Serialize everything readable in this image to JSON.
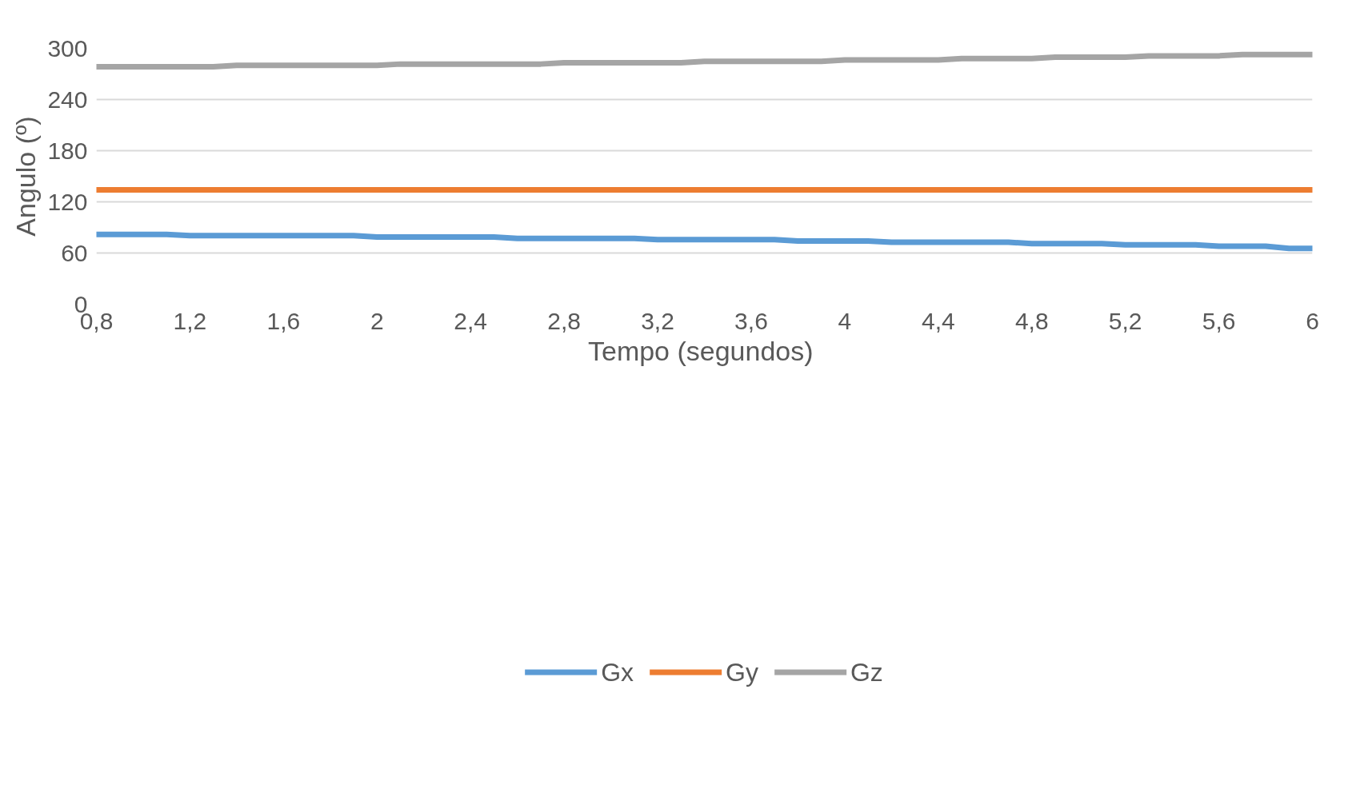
{
  "chart_data": {
    "type": "line",
    "xlabel": "Tempo  (segundos)",
    "ylabel": "Angulo (º)",
    "xlim": [
      0.8,
      6
    ],
    "ylim": [
      0,
      300
    ],
    "xticks": [
      {
        "value": 0.8,
        "label": "0,8"
      },
      {
        "value": 1.2,
        "label": "1,2"
      },
      {
        "value": 1.6,
        "label": "1,6"
      },
      2,
      {
        "value": 2.4,
        "label": "2,4"
      },
      {
        "value": 2.8,
        "label": "2,8"
      },
      {
        "value": 3.2,
        "label": "3,2"
      },
      {
        "value": 3.6,
        "label": "3,6"
      },
      4,
      {
        "value": 4.4,
        "label": "4,4"
      },
      {
        "value": 4.8,
        "label": "4,8"
      },
      {
        "value": 5.2,
        "label": "5,2"
      },
      {
        "value": 5.6,
        "label": "5,6"
      },
      6
    ],
    "yticks": [
      0,
      60,
      120,
      180,
      240,
      300
    ],
    "grid": "y",
    "legend": "bottom",
    "marker": "none",
    "line_style": "solid",
    "series": [
      {
        "name": "Gx",
        "color": "#5b9bd5",
        "x": [
          0.8,
          1.1,
          1.2,
          1.9,
          2.0,
          2.5,
          2.6,
          3.1,
          3.2,
          3.7,
          3.8,
          4.1,
          4.2,
          4.7,
          4.8,
          5.1,
          5.2,
          5.5,
          5.6,
          5.8,
          5.9,
          6.0
        ],
        "values": [
          81.8,
          81.8,
          80.3,
          80.3,
          78.7,
          78.7,
          77.2,
          77.2,
          75.7,
          75.7,
          74.1,
          74.1,
          72.6,
          72.6,
          71,
          71,
          69.5,
          69.5,
          67.9,
          67.9,
          65.4,
          65.4
        ]
      },
      {
        "name": "Gy",
        "color": "#ed7d31",
        "x": [
          0.8,
          6.0
        ],
        "values": [
          134,
          134
        ]
      },
      {
        "name": "Gz",
        "color": "#a5a5a5",
        "x": [
          0.8,
          1.3,
          1.4,
          2.0,
          2.1,
          2.7,
          2.8,
          3.3,
          3.4,
          3.9,
          4.0,
          4.4,
          4.5,
          4.8,
          4.9,
          5.2,
          5.3,
          5.6,
          5.7,
          6.0
        ],
        "values": [
          278.4,
          278.4,
          280,
          280,
          281.6,
          281.6,
          283.2,
          283.2,
          284.8,
          284.8,
          286.4,
          286.4,
          288,
          288,
          289.6,
          289.6,
          291.2,
          291.2,
          292.8,
          292.8
        ]
      }
    ]
  }
}
